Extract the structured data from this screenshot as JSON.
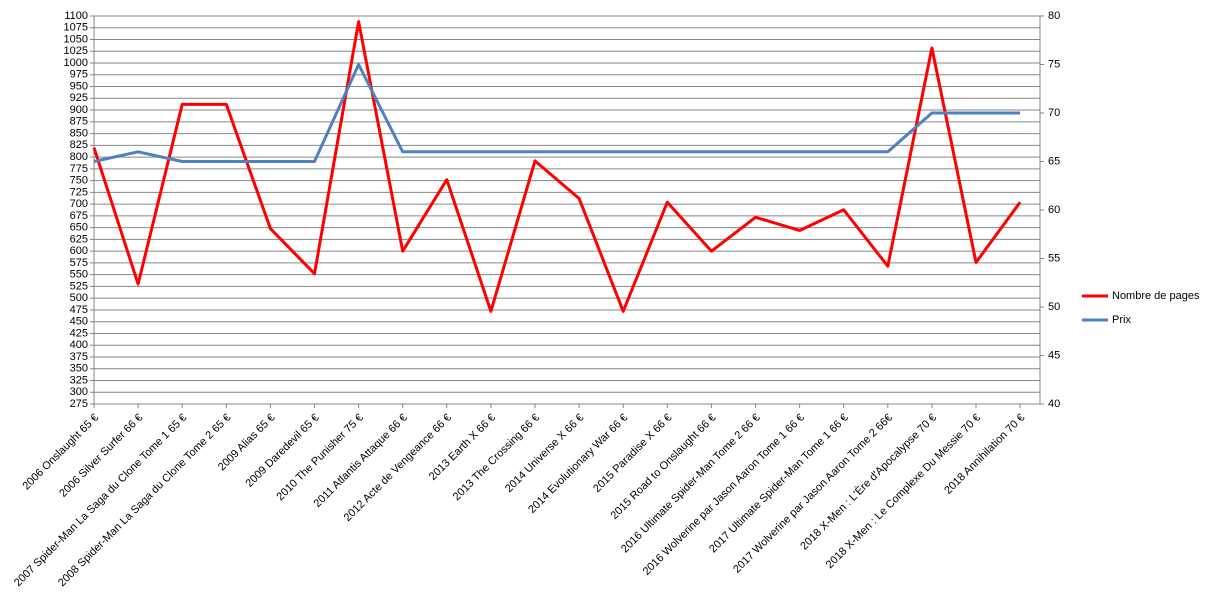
{
  "chart_data": {
    "type": "line",
    "categories": [
      "2006 Onslaught 65 €",
      "2006 Silver Surfer   66 €",
      "2007 Spider-Man La Saga du Clone Tome 1 65 €",
      "2008 Spider-Man La Saga du Clone Tome 2 65 €",
      "2009 Alias 65 €",
      "2009 Daredevil 65 €",
      "2010 The Punisher 75 €",
      "2011 Atlantis Attaque 66 €",
      "2012 Acte de Vengeance 66 €",
      "2013 Earth X 66 €",
      "2013 The Crossing 66 €",
      "2014 Universe X 66 €",
      "2014 Evolutionary War 66 €",
      "2015 Paradise X 66 €",
      "2015 Road to Onslaught 66 €",
      "2016 Ultimate Spider-Man Tome 2 66 €",
      "2016 Wolverine par Jason Aaron Tome 1 66 €",
      "2017 Ultimate Spider-Man Tome 1 66 €",
      "2017 Wolverine par Jason Aaron Tome 2 66€",
      "2018 X-Men : L'Ère d'Apocalypse 70 €",
      "2018 X-Men : Le Complexe Du Messie 70 €",
      "2018 Annihilation 70 €"
    ],
    "series": [
      {
        "name": "Nombre de pages",
        "color": "#ff0000",
        "values": [
          820,
          530,
          912,
          912,
          648,
          552,
          1088,
          600,
          752,
          472,
          792,
          712,
          472,
          704,
          600,
          672,
          644,
          688,
          568,
          1032,
          576,
          704
        ]
      },
      {
        "name": "Prix",
        "color": "#4f81bd",
        "axis": "y2",
        "values": [
          65,
          66,
          65,
          65,
          65,
          65,
          75,
          66,
          66,
          66,
          66,
          66,
          66,
          66,
          66,
          66,
          66,
          66,
          66,
          70,
          70,
          70
        ]
      }
    ],
    "ylim": [
      275,
      1100
    ],
    "yticks": [
      275,
      300,
      325,
      350,
      375,
      400,
      425,
      450,
      475,
      500,
      525,
      550,
      575,
      600,
      625,
      650,
      675,
      700,
      725,
      750,
      775,
      800,
      825,
      850,
      875,
      900,
      925,
      950,
      975,
      1000,
      1025,
      1050,
      1075,
      1100
    ],
    "y2lim": [
      40,
      80
    ],
    "y2ticks": [
      40,
      45,
      50,
      55,
      60,
      65,
      70,
      75,
      80
    ],
    "grid": true,
    "legend": "right"
  }
}
